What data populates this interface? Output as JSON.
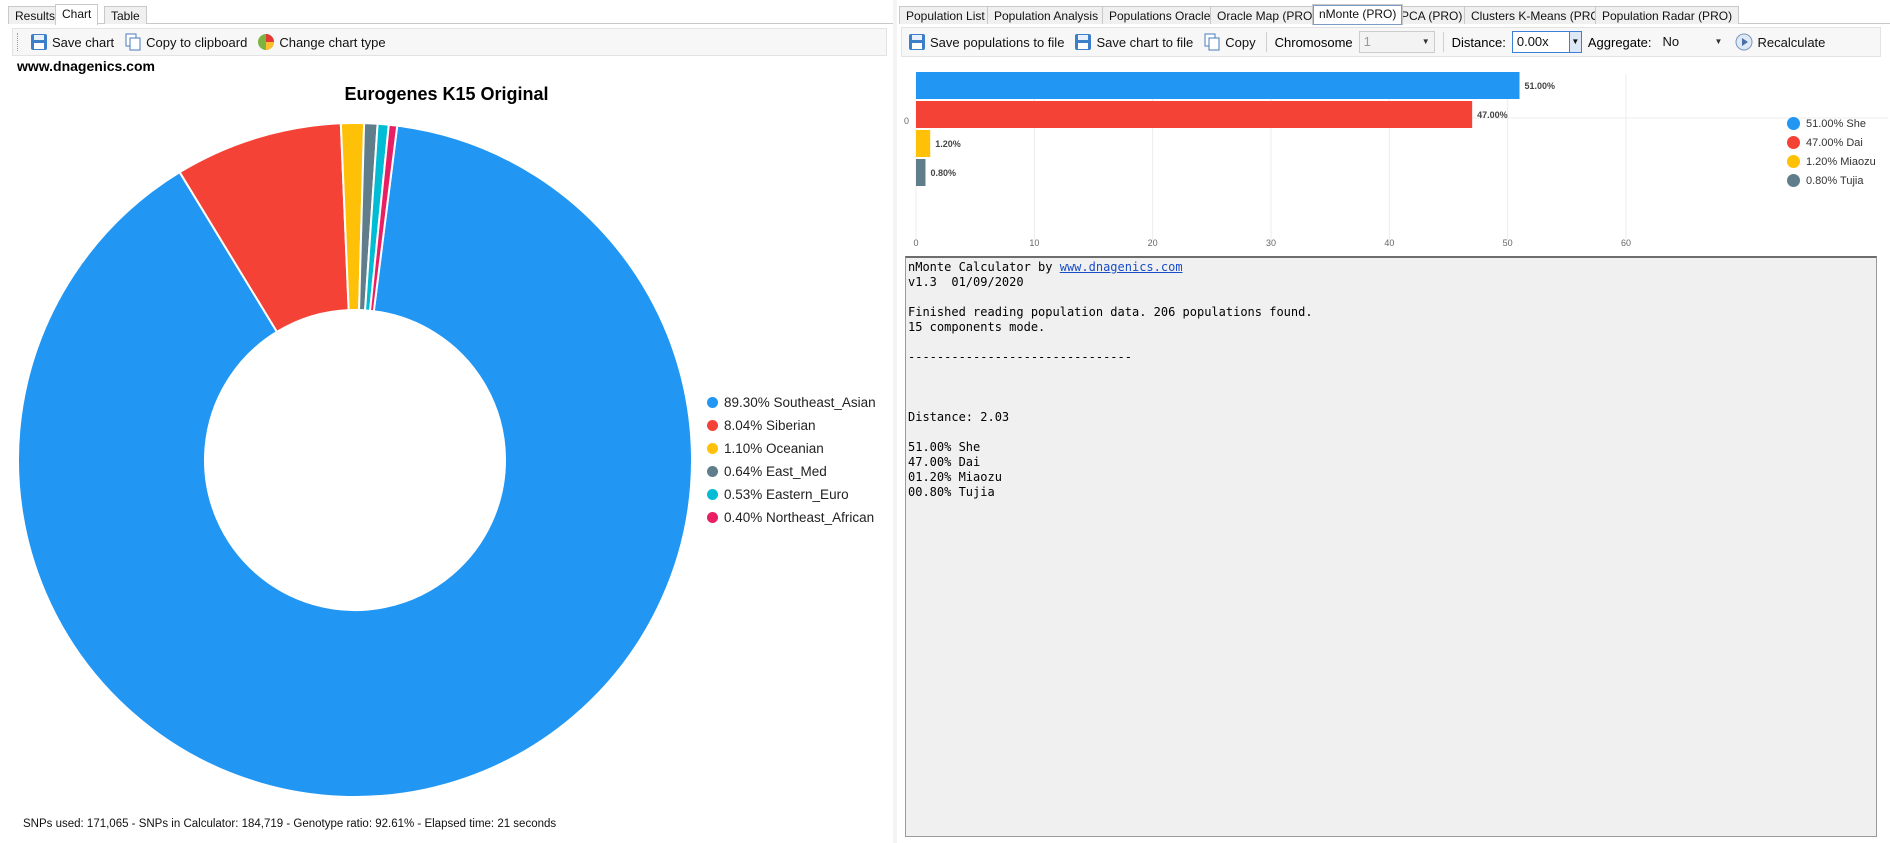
{
  "left": {
    "tabs": [
      "Results",
      "Chart",
      "Table"
    ],
    "active_tab": "Chart",
    "toolbar": {
      "save_chart": "Save chart",
      "copy_clipboard": "Copy to clipboard",
      "change_type": "Change chart type"
    },
    "site": "www.dnagenics.com",
    "status": "SNPs used: 171,065 - SNPs in Calculator: 184,719 - Genotype ratio: 92.61% - Elapsed time: 21 seconds"
  },
  "chart_data": [
    {
      "type": "pie",
      "title": "Eurogenes K15 Original",
      "categories": [
        "Southeast_Asian",
        "Siberian",
        "Oceanian",
        "East_Med",
        "Eastern_Euro",
        "Northeast_African"
      ],
      "values": [
        89.3,
        8.04,
        1.1,
        0.64,
        0.53,
        0.4
      ],
      "legend_labels": [
        "89.30% Southeast_Asian",
        "8.04% Siberian",
        "1.10% Oceanian",
        "0.64% East_Med",
        "0.53% Eastern_Euro",
        "0.40% Northeast_African"
      ],
      "colors": [
        "#2196f3",
        "#f44336",
        "#ffc107",
        "#607d8b",
        "#00bcd4",
        "#e91e63"
      ],
      "legend_position": "right",
      "style": "donut"
    },
    {
      "type": "bar",
      "orientation": "horizontal",
      "categories": [
        "She",
        "Dai",
        "Miaozu",
        "Tujia"
      ],
      "values": [
        51.0,
        47.0,
        1.2,
        0.8
      ],
      "data_labels": [
        "51.00%",
        "47.00%",
        "1.20%",
        "0.80%"
      ],
      "legend_labels": [
        "51.00% She",
        "47.00% Dai",
        "1.20% Miaozu",
        "0.80% Tujia"
      ],
      "colors": [
        "#2196f3",
        "#f44336",
        "#ffc107",
        "#607d8b"
      ],
      "x_ticks": [
        "0",
        "10",
        "20",
        "30",
        "40",
        "50",
        "60"
      ],
      "y_tick": "0",
      "xlim": [
        0,
        60
      ],
      "legend_position": "right",
      "grid": true
    }
  ],
  "right": {
    "tabs": [
      "Population List",
      "Population Analysis",
      "Populations Oracle",
      "Oracle Map (PRO)",
      "nMonte (PRO)",
      "PCA (PRO)",
      "Clusters K-Means (PRO)",
      "Population Radar (PRO)"
    ],
    "active_tab": "nMonte (PRO)",
    "toolbar": {
      "save_pops": "Save populations to file",
      "save_chart": "Save chart to file",
      "copy": "Copy",
      "chromosome_label": "Chromosome",
      "chromosome_value": "1",
      "distance_label": "Distance:",
      "distance_value": "0.00x",
      "aggregate_label": "Aggregate:",
      "aggregate_value": "No",
      "recalculate": "Recalculate"
    },
    "log": {
      "title_prefix": "nMonte Calculator by ",
      "title_link": "www.dnagenics.com",
      "version": "v1.3  01/09/2020",
      "finished": "Finished reading population data. 206 populations found.",
      "mode": "15 components mode.",
      "divider": "-------------------------------",
      "distance": "Distance: 2.03",
      "results": [
        "51.00% She",
        "47.00% Dai",
        "01.20% Miaozu",
        "00.80% Tujia"
      ]
    }
  }
}
